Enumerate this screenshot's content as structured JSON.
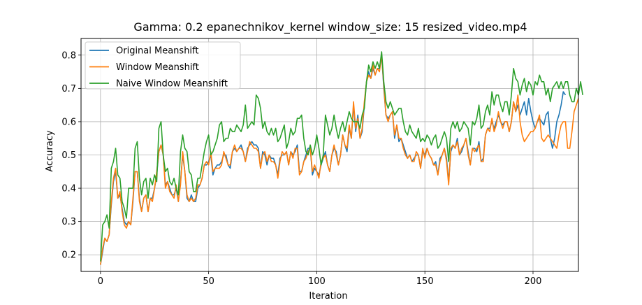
{
  "chart_data": {
    "type": "line",
    "title": "Gamma: 0.2 epanechnikov_kernel window_size: 15 resized_video.mp4",
    "xlabel": "Iteration",
    "ylabel": "Accuracy",
    "xlim": [
      -9,
      221
    ],
    "ylim": [
      0.15,
      0.85
    ],
    "xticks": [
      0,
      50,
      100,
      150,
      200
    ],
    "yticks": [
      0.2,
      0.3,
      0.4,
      0.5,
      0.6,
      0.7,
      0.8
    ],
    "grid": true,
    "legend_position": "upper-left",
    "series": [
      {
        "name": "Original Meanshift",
        "color": "#1f77b4",
        "x_start": 0,
        "values": [
          0.17,
          0.21,
          0.25,
          0.24,
          0.26,
          0.35,
          0.42,
          0.45,
          0.37,
          0.38,
          0.34,
          0.3,
          0.29,
          0.3,
          0.29,
          0.36,
          0.45,
          0.45,
          0.37,
          0.33,
          0.37,
          0.38,
          0.33,
          0.37,
          0.37,
          0.4,
          0.44,
          0.51,
          0.53,
          0.5,
          0.41,
          0.42,
          0.4,
          0.38,
          0.38,
          0.4,
          0.36,
          0.42,
          0.5,
          0.45,
          0.37,
          0.36,
          0.38,
          0.36,
          0.36,
          0.4,
          0.41,
          0.43,
          0.47,
          0.47,
          0.48,
          0.5,
          0.44,
          0.46,
          0.47,
          0.47,
          0.48,
          0.5,
          0.5,
          0.47,
          0.46,
          0.51,
          0.52,
          0.51,
          0.52,
          0.53,
          0.51,
          0.48,
          0.52,
          0.53,
          0.54,
          0.53,
          0.53,
          0.52,
          0.46,
          0.51,
          0.5,
          0.47,
          0.5,
          0.49,
          0.49,
          0.47,
          0.44,
          0.49,
          0.5,
          0.5,
          0.51,
          0.47,
          0.51,
          0.5,
          0.51,
          0.53,
          0.45,
          0.45,
          0.48,
          0.5,
          0.52,
          0.52,
          0.44,
          0.46,
          0.45,
          0.44,
          0.47,
          0.49,
          0.51,
          0.47,
          0.45,
          0.5,
          0.52,
          0.51,
          0.47,
          0.5,
          0.56,
          0.53,
          0.51,
          0.58,
          0.55,
          0.65,
          0.57,
          0.62,
          0.55,
          0.57,
          0.65,
          0.72,
          0.75,
          0.73,
          0.76,
          0.74,
          0.76,
          0.76,
          0.8,
          0.7,
          0.62,
          0.61,
          0.62,
          0.63,
          0.55,
          0.59,
          0.54,
          0.55,
          0.53,
          0.51,
          0.49,
          0.5,
          0.48,
          0.49,
          0.5,
          0.5,
          0.46,
          0.51,
          0.5,
          0.52,
          0.5,
          0.49,
          0.47,
          0.48,
          0.44,
          0.49,
          0.5,
          0.52,
          0.49,
          0.42,
          0.51,
          0.53,
          0.52,
          0.55,
          0.5,
          0.51,
          0.53,
          0.55,
          0.51,
          0.47,
          0.52,
          0.52,
          0.51,
          0.54,
          0.48,
          0.49,
          0.56,
          0.58,
          0.58,
          0.6,
          0.58,
          0.6,
          0.62,
          0.6,
          0.59,
          0.6,
          0.6,
          0.57,
          0.6,
          0.66,
          0.63,
          0.65,
          0.62,
          0.64,
          0.66,
          0.62,
          0.67,
          0.63,
          0.6,
          0.58,
          0.6,
          0.61,
          0.6,
          0.59,
          0.62,
          0.63,
          0.55,
          0.52,
          0.55,
          0.6,
          0.62,
          0.65,
          0.69,
          0.68
        ]
      },
      {
        "name": "Window Meanshift",
        "color": "#ff7f0e",
        "x_start": 0,
        "values": [
          0.17,
          0.22,
          0.25,
          0.24,
          0.26,
          0.36,
          0.43,
          0.46,
          0.37,
          0.39,
          0.33,
          0.29,
          0.28,
          0.3,
          0.29,
          0.37,
          0.45,
          0.45,
          0.36,
          0.33,
          0.37,
          0.38,
          0.33,
          0.37,
          0.36,
          0.4,
          0.45,
          0.51,
          0.53,
          0.5,
          0.4,
          0.42,
          0.39,
          0.38,
          0.37,
          0.41,
          0.36,
          0.41,
          0.51,
          0.45,
          0.38,
          0.36,
          0.37,
          0.36,
          0.37,
          0.41,
          0.41,
          0.43,
          0.47,
          0.48,
          0.47,
          0.51,
          0.45,
          0.46,
          0.46,
          0.46,
          0.47,
          0.51,
          0.49,
          0.47,
          0.47,
          0.51,
          0.53,
          0.51,
          0.52,
          0.52,
          0.51,
          0.48,
          0.51,
          0.54,
          0.53,
          0.52,
          0.52,
          0.51,
          0.46,
          0.5,
          0.51,
          0.48,
          0.5,
          0.48,
          0.48,
          0.47,
          0.43,
          0.48,
          0.51,
          0.5,
          0.51,
          0.47,
          0.51,
          0.49,
          0.52,
          0.52,
          0.44,
          0.45,
          0.48,
          0.49,
          0.51,
          0.52,
          0.45,
          0.47,
          0.45,
          0.43,
          0.48,
          0.49,
          0.5,
          0.47,
          0.45,
          0.5,
          0.53,
          0.5,
          0.47,
          0.5,
          0.56,
          0.53,
          0.52,
          0.59,
          0.55,
          0.66,
          0.58,
          0.61,
          0.55,
          0.58,
          0.66,
          0.72,
          0.74,
          0.73,
          0.77,
          0.74,
          0.76,
          0.75,
          0.8,
          0.71,
          0.62,
          0.6,
          0.62,
          0.63,
          0.56,
          0.59,
          0.55,
          0.55,
          0.52,
          0.5,
          0.49,
          0.5,
          0.48,
          0.48,
          0.51,
          0.5,
          0.46,
          0.52,
          0.49,
          0.52,
          0.5,
          0.49,
          0.47,
          0.47,
          0.44,
          0.48,
          0.5,
          0.52,
          0.48,
          0.41,
          0.52,
          0.53,
          0.52,
          0.54,
          0.5,
          0.52,
          0.53,
          0.55,
          0.5,
          0.47,
          0.52,
          0.51,
          0.52,
          0.53,
          0.48,
          0.48,
          0.56,
          0.58,
          0.57,
          0.61,
          0.57,
          0.59,
          0.63,
          0.6,
          0.58,
          0.6,
          0.6,
          0.57,
          0.6,
          0.66,
          0.63,
          0.68,
          0.6,
          0.56,
          0.54,
          0.55,
          0.56,
          0.57,
          0.57,
          0.58,
          0.6,
          0.62,
          0.55,
          0.54,
          0.55,
          0.56,
          0.55,
          0.54,
          0.53,
          0.52,
          0.56,
          0.59,
          0.6,
          0.6,
          0.52,
          0.52,
          0.57,
          0.63,
          0.65,
          0.67
        ]
      },
      {
        "name": "Naive Window Meanshift",
        "color": "#2ca02c",
        "x_start": 0,
        "values": [
          0.18,
          0.29,
          0.3,
          0.32,
          0.28,
          0.46,
          0.48,
          0.52,
          0.44,
          0.43,
          0.36,
          0.34,
          0.31,
          0.4,
          0.4,
          0.4,
          0.52,
          0.54,
          0.43,
          0.38,
          0.42,
          0.43,
          0.37,
          0.43,
          0.41,
          0.44,
          0.42,
          0.58,
          0.6,
          0.5,
          0.45,
          0.46,
          0.42,
          0.41,
          0.43,
          0.4,
          0.38,
          0.51,
          0.56,
          0.52,
          0.51,
          0.45,
          0.44,
          0.39,
          0.39,
          0.43,
          0.43,
          0.47,
          0.51,
          0.54,
          0.56,
          0.5,
          0.51,
          0.53,
          0.55,
          0.59,
          0.6,
          0.54,
          0.55,
          0.55,
          0.58,
          0.57,
          0.57,
          0.59,
          0.58,
          0.57,
          0.59,
          0.65,
          0.58,
          0.59,
          0.6,
          0.59,
          0.68,
          0.67,
          0.64,
          0.58,
          0.6,
          0.57,
          0.56,
          0.58,
          0.56,
          0.58,
          0.54,
          0.55,
          0.57,
          0.59,
          0.52,
          0.54,
          0.58,
          0.56,
          0.57,
          0.61,
          0.61,
          0.62,
          0.55,
          0.51,
          0.5,
          0.53,
          0.5,
          0.52,
          0.56,
          0.52,
          0.47,
          0.5,
          0.62,
          0.59,
          0.56,
          0.58,
          0.62,
          0.58,
          0.55,
          0.58,
          0.6,
          0.57,
          0.6,
          0.63,
          0.61,
          0.6,
          0.6,
          0.6,
          0.58,
          0.62,
          0.64,
          0.72,
          0.77,
          0.75,
          0.78,
          0.76,
          0.78,
          0.76,
          0.81,
          0.72,
          0.66,
          0.64,
          0.66,
          0.64,
          0.62,
          0.63,
          0.64,
          0.64,
          0.6,
          0.57,
          0.56,
          0.59,
          0.57,
          0.56,
          0.55,
          0.58,
          0.54,
          0.55,
          0.54,
          0.56,
          0.55,
          0.53,
          0.55,
          0.56,
          0.52,
          0.53,
          0.55,
          0.57,
          0.55,
          0.48,
          0.58,
          0.6,
          0.58,
          0.6,
          0.57,
          0.58,
          0.6,
          0.59,
          0.58,
          0.53,
          0.6,
          0.59,
          0.61,
          0.65,
          0.58,
          0.59,
          0.63,
          0.65,
          0.62,
          0.69,
          0.65,
          0.68,
          0.68,
          0.65,
          0.63,
          0.66,
          0.66,
          0.62,
          0.68,
          0.76,
          0.73,
          0.72,
          0.68,
          0.71,
          0.73,
          0.69,
          0.72,
          0.71,
          0.68,
          0.72,
          0.71,
          0.74,
          0.72,
          0.72,
          0.68,
          0.7,
          0.66,
          0.7,
          0.71,
          0.72,
          0.7,
          0.72,
          0.7,
          0.72,
          0.72,
          0.68,
          0.66,
          0.66,
          0.7,
          0.68,
          0.72,
          0.68
        ]
      }
    ]
  }
}
